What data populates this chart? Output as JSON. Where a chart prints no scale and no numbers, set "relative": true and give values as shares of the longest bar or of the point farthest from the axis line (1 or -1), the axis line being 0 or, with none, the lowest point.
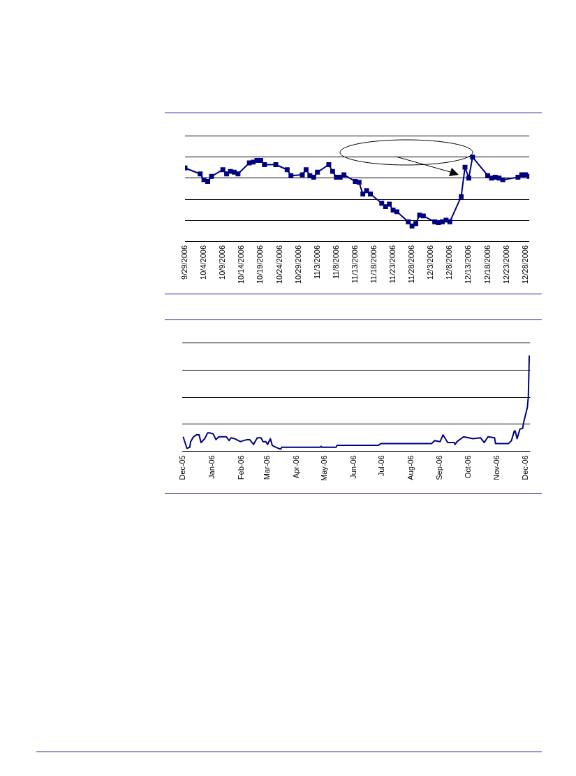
{
  "chart_data": [
    {
      "type": "line",
      "relative": true,
      "grid": "y",
      "marker": "square",
      "x": [
        "2006-09-29",
        "2006-10-03",
        "2006-10-04",
        "2006-10-05",
        "2006-10-06",
        "2006-10-09",
        "2006-10-10",
        "2006-10-11",
        "2006-10-12",
        "2006-10-13",
        "2006-10-16",
        "2006-10-17",
        "2006-10-18",
        "2006-10-19",
        "2006-10-20",
        "2006-10-23",
        "2006-10-26",
        "2006-10-27",
        "2006-10-30",
        "2006-10-31",
        "2006-11-01",
        "2006-11-02",
        "2006-11-03",
        "2006-11-06",
        "2006-11-07",
        "2006-11-08",
        "2006-11-09",
        "2006-11-10",
        "2006-11-13",
        "2006-11-14",
        "2006-11-15",
        "2006-11-16",
        "2006-11-17",
        "2006-11-20",
        "2006-11-21",
        "2006-11-22",
        "2006-11-23",
        "2006-11-24",
        "2006-11-27",
        "2006-11-28",
        "2006-11-29",
        "2006-11-30",
        "2006-12-01",
        "2006-12-04",
        "2006-12-05",
        "2006-12-06",
        "2006-12-07",
        "2006-12-08",
        "2006-12-11",
        "2006-12-12",
        "2006-12-13",
        "2006-12-14",
        "2006-12-18",
        "2006-12-19",
        "2006-12-20",
        "2006-12-21",
        "2006-12-22",
        "2006-12-26",
        "2006-12-27",
        "2006-12-28",
        "2006-12-29"
      ],
      "series": [
        {
          "color": "#000080",
          "values": [
            0.87,
            0.8,
            0.73,
            0.71,
            0.77,
            0.85,
            0.8,
            0.83,
            0.82,
            0.8,
            0.93,
            0.94,
            0.96,
            0.96,
            0.91,
            0.91,
            0.85,
            0.78,
            0.79,
            0.85,
            0.78,
            0.76,
            0.82,
            0.91,
            0.83,
            0.76,
            0.76,
            0.79,
            0.71,
            0.7,
            0.56,
            0.6,
            0.56,
            0.45,
            0.41,
            0.44,
            0.37,
            0.35,
            0.23,
            0.18,
            0.21,
            0.31,
            0.3,
            0.23,
            0.22,
            0.23,
            0.25,
            0.23,
            0.53,
            0.88,
            0.75,
            1,
            0.78,
            0.75,
            0.76,
            0.75,
            0.73,
            0.76,
            0.79,
            0.79,
            0.77
          ]
        }
      ],
      "xlim": [
        "2006-09-29",
        "2006-12-29"
      ],
      "xticks": [
        {
          "value": "2006-09-29",
          "label": "9/29/2006"
        },
        {
          "value": "2006-10-04",
          "label": "10/4/2006"
        },
        {
          "value": "2006-10-09",
          "label": "10/9/2006"
        },
        {
          "value": "2006-10-14",
          "label": "10/14/2006"
        },
        {
          "value": "2006-10-19",
          "label": "10/19/2006"
        },
        {
          "value": "2006-10-24",
          "label": "10/24/2006"
        },
        {
          "value": "2006-10-29",
          "label": "10/29/2006"
        },
        {
          "value": "2006-11-03",
          "label": "11/3/2006"
        },
        {
          "value": "2006-11-08",
          "label": "11/8/2006"
        },
        {
          "value": "2006-11-13",
          "label": "11/13/2006"
        },
        {
          "value": "2006-11-18",
          "label": "11/18/2006"
        },
        {
          "value": "2006-11-23",
          "label": "11/23/2006"
        },
        {
          "value": "2006-11-28",
          "label": "11/28/2006"
        },
        {
          "value": "2006-12-03",
          "label": "12/3/2006"
        },
        {
          "value": "2006-12-08",
          "label": "12/8/2006"
        },
        {
          "value": "2006-12-13",
          "label": "12/13/2006"
        },
        {
          "value": "2006-12-18",
          "label": "12/18/2006"
        },
        {
          "value": "2006-12-23",
          "label": "12/23/2006"
        },
        {
          "value": "2006-12-28",
          "label": "12/28/2006"
        }
      ]
    },
    {
      "type": "line",
      "relative": true,
      "grid": "y",
      "marker": "none",
      "x": [
        "2005-12-01",
        "2005-12-03",
        "2005-12-05",
        "2005-12-08",
        "2005-12-09",
        "2005-12-12",
        "2005-12-15",
        "2005-12-18",
        "2005-12-20",
        "2005-12-24",
        "2005-12-27",
        "2005-12-30",
        "2006-01-02",
        "2006-01-05",
        "2006-01-08",
        "2006-01-16",
        "2006-01-19",
        "2006-01-21",
        "2006-01-25",
        "2006-01-31",
        "2006-02-07",
        "2006-02-10",
        "2006-02-14",
        "2006-02-18",
        "2006-02-22",
        "2006-02-24",
        "2006-02-27",
        "2006-03-01",
        "2006-03-04",
        "2006-03-06",
        "2006-03-10",
        "2006-03-15",
        "2006-03-16",
        "2006-04-26",
        "2006-04-27",
        "2006-04-28",
        "2006-05-13",
        "2006-05-14",
        "2006-05-17",
        "2006-05-18",
        "2006-06-27",
        "2006-06-30",
        "2006-07-15",
        "2006-08-23",
        "2006-08-26",
        "2006-09-01",
        "2006-09-04",
        "2006-09-09",
        "2006-09-16",
        "2006-09-17",
        "2006-09-19",
        "2006-09-26",
        "2006-10-06",
        "2006-10-14",
        "2006-10-18",
        "2006-10-22",
        "2006-10-29",
        "2006-10-30",
        "2006-11-13",
        "2006-11-16",
        "2006-11-19",
        "2006-11-20",
        "2006-11-22",
        "2006-11-25",
        "2006-11-28",
        "2006-11-29",
        "2006-12-03",
        "2006-12-04",
        "2006-12-05"
      ],
      "series": [
        {
          "color": "#000080",
          "values": [
            0.15,
            0.09,
            0.03,
            0.04,
            0.1,
            0.15,
            0.17,
            0.17,
            0.09,
            0.13,
            0.19,
            0.19,
            0.18,
            0.12,
            0.15,
            0.15,
            0.11,
            0.14,
            0.13,
            0.1,
            0.12,
            0.12,
            0.07,
            0.14,
            0.14,
            0.1,
            0.1,
            0.07,
            0.13,
            0.06,
            0.04,
            0.02,
            0.04,
            0.04,
            0.05,
            0.04,
            0.04,
            0.06,
            0.06,
            0.06,
            0.06,
            0.08,
            0.08,
            0.08,
            0.11,
            0.1,
            0.17,
            0.09,
            0.09,
            0.07,
            0.1,
            0.15,
            0.13,
            0.14,
            0.09,
            0.15,
            0.14,
            0.08,
            0.08,
            0.11,
            0.21,
            0.21,
            0.13,
            0.23,
            0.24,
            0.3,
            0.46,
            0.57,
            1
          ]
        }
      ],
      "xlim": [
        "2005-11-30",
        "2006-12-06"
      ],
      "xticks": [
        {
          "value": "2005-12-01",
          "label": "Dec-05"
        },
        {
          "value": "2006-01-01",
          "label": "Jan-06"
        },
        {
          "value": "2006-02-01",
          "label": "Feb-06"
        },
        {
          "value": "2006-03-01",
          "label": "Mar-06"
        },
        {
          "value": "2006-04-01",
          "label": "Apr-06"
        },
        {
          "value": "2006-05-01",
          "label": "May-06"
        },
        {
          "value": "2006-06-01",
          "label": "Jun-06"
        },
        {
          "value": "2006-07-01",
          "label": "Jul-06"
        },
        {
          "value": "2006-08-01",
          "label": "Aug-06"
        },
        {
          "value": "2006-09-01",
          "label": "Sep-06"
        },
        {
          "value": "2006-10-01",
          "label": "Oct-06"
        },
        {
          "value": "2006-11-01",
          "label": "Nov-06"
        },
        {
          "value": "2006-12-01",
          "label": "Dec-06"
        }
      ]
    }
  ]
}
